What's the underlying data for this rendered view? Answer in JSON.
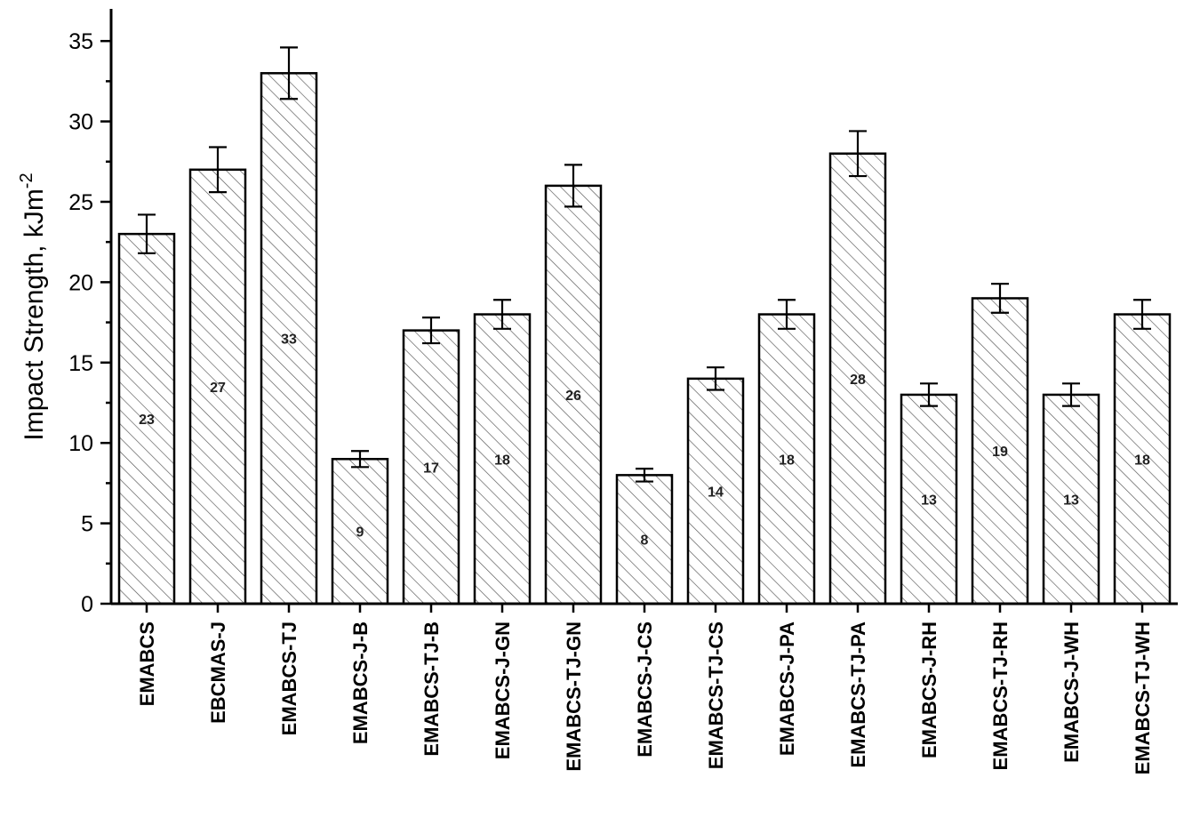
{
  "chart_data": {
    "type": "bar",
    "title": "",
    "xlabel": "",
    "ylabel": "Impact Strength, kJm",
    "ylabel_superscript": "-2",
    "ylim": [
      0,
      37
    ],
    "yticks": [
      "0",
      "5",
      "10",
      "15",
      "20",
      "25",
      "30",
      "35"
    ],
    "grid": false,
    "legend": "none",
    "bar_fill": "hatched",
    "categories": [
      "EMABCS",
      "EBCMAS-J",
      "EMABCS-TJ",
      "EMABCS-J-B",
      "EMABCS-TJ-B",
      "EMABCS-J-GN",
      "EMABCS-TJ-GN",
      "EMABCS-J-CS",
      "EMABCS-TJ-CS",
      "EMABCS-J-PA",
      "EMABCS-TJ-PA",
      "EMABCS-J-RH",
      "EMABCS-TJ-RH",
      "EMABCS-J-WH",
      "EMABCS-TJ-WH"
    ],
    "values": [
      23,
      27,
      33,
      9,
      17,
      18,
      26,
      8,
      14,
      18,
      28,
      13,
      19,
      13,
      18
    ],
    "error": [
      1.2,
      1.4,
      1.6,
      0.5,
      0.8,
      0.9,
      1.3,
      0.4,
      0.7,
      0.9,
      1.4,
      0.7,
      0.9,
      0.7,
      0.9
    ],
    "value_labels": [
      "23",
      "27",
      "33",
      "9",
      "17",
      "18",
      "26",
      "8",
      "14",
      "18",
      "28",
      "13",
      "19",
      "13",
      "18"
    ]
  }
}
